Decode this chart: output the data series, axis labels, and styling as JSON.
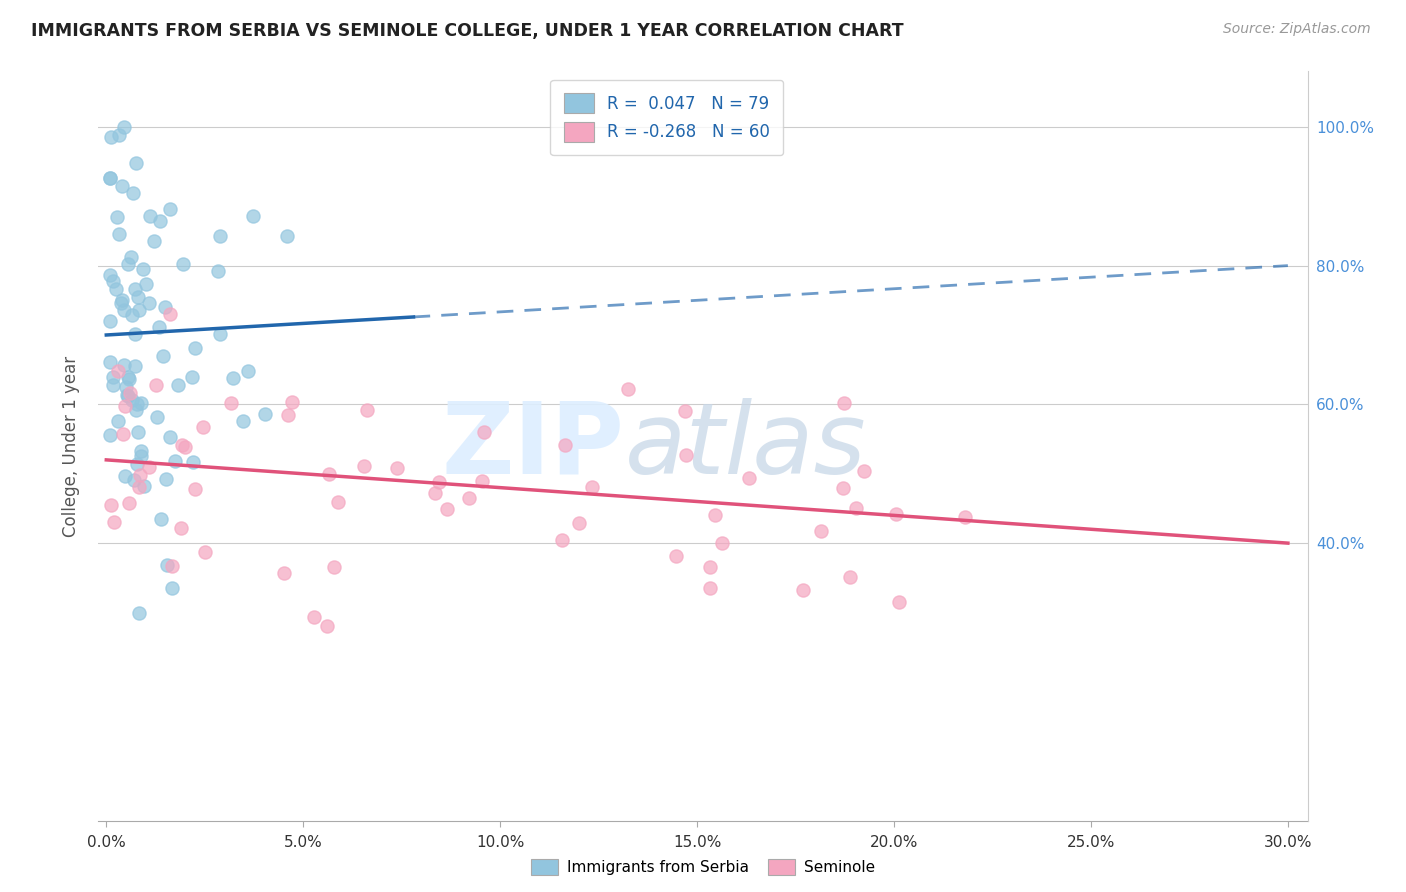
{
  "title": "IMMIGRANTS FROM SERBIA VS SEMINOLE COLLEGE, UNDER 1 YEAR CORRELATION CHART",
  "source": "Source: ZipAtlas.com",
  "ylabel": "College, Under 1 year",
  "blue_color": "#92c5de",
  "pink_color": "#f4a6c0",
  "blue_line_color": "#2166ac",
  "pink_line_color": "#e0527a",
  "blue_R": 0.047,
  "blue_N": 79,
  "pink_R": -0.268,
  "pink_N": 60,
  "xlim": [
    0.0,
    0.3
  ],
  "ylim": [
    0.0,
    1.08
  ],
  "ytick_vals": [
    0.4,
    0.6,
    0.8,
    1.0
  ],
  "ytick_labels": [
    "40.0%",
    "60.0%",
    "80.0%",
    "100.0%"
  ],
  "xtick_vals": [
    0.0,
    0.05,
    0.1,
    0.15,
    0.2,
    0.25,
    0.3
  ],
  "xtick_labels": [
    "0.0%",
    "5.0%",
    "10.0%",
    "15.0%",
    "20.0%",
    "25.0%",
    "30.0%"
  ]
}
